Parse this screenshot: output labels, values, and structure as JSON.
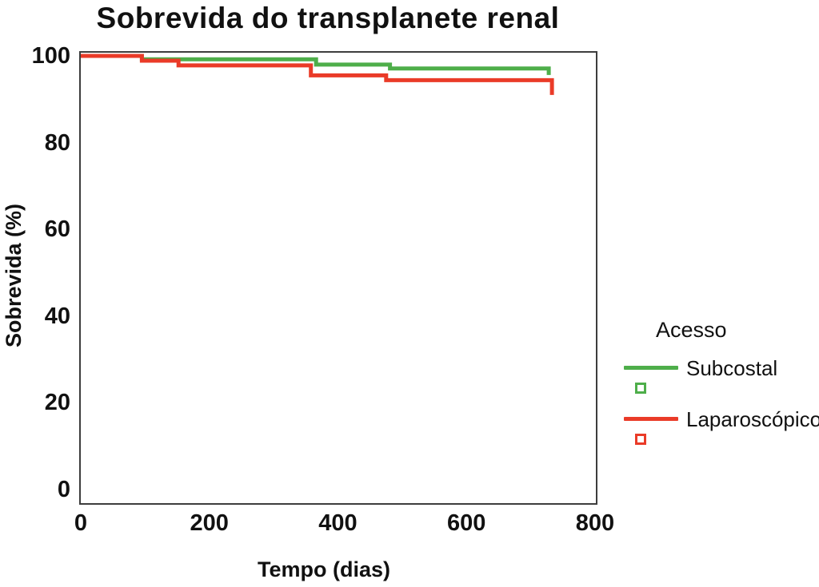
{
  "chart_data": {
    "type": "line",
    "subtype": "kaplan-meier-step",
    "title": "Sobrevida do transplanete renal",
    "xlabel": "Tempo (dias)",
    "ylabel": "Sobrevida (%)",
    "xlim": [
      0,
      800
    ],
    "ylim": [
      0,
      100
    ],
    "xticks": [
      "0",
      "200",
      "400",
      "600",
      "800"
    ],
    "xtick_values": [
      0,
      200,
      400,
      600,
      800
    ],
    "yticks": [
      "0",
      "20",
      "40",
      "60",
      "80",
      "100"
    ],
    "ytick_values": [
      0,
      20,
      40,
      60,
      80,
      100
    ],
    "grid": false,
    "legend": {
      "title": "Acesso",
      "position": "right"
    },
    "series": [
      {
        "name": "Subcostal",
        "color": "#4eae4a",
        "marker": "open-square",
        "points": [
          [
            0,
            100
          ],
          [
            95,
            100
          ],
          [
            95,
            99.2
          ],
          [
            366,
            99.2
          ],
          [
            366,
            98
          ],
          [
            481,
            98
          ],
          [
            481,
            97.1
          ],
          [
            728,
            97.1
          ],
          [
            728,
            95.6
          ]
        ]
      },
      {
        "name": "Laparoscópico",
        "color": "#ea3b28",
        "marker": "open-square",
        "points": [
          [
            0,
            100
          ],
          [
            95,
            100
          ],
          [
            95,
            98.9
          ],
          [
            152,
            98.9
          ],
          [
            152,
            97.8
          ],
          [
            358,
            97.8
          ],
          [
            358,
            95.5
          ],
          [
            475,
            95.5
          ],
          [
            475,
            94.4
          ],
          [
            733,
            94.4
          ],
          [
            733,
            91
          ]
        ]
      }
    ]
  },
  "colors": {
    "axis_frame": "#3d3d3d",
    "text": "#111111",
    "background": "#ffffff"
  }
}
